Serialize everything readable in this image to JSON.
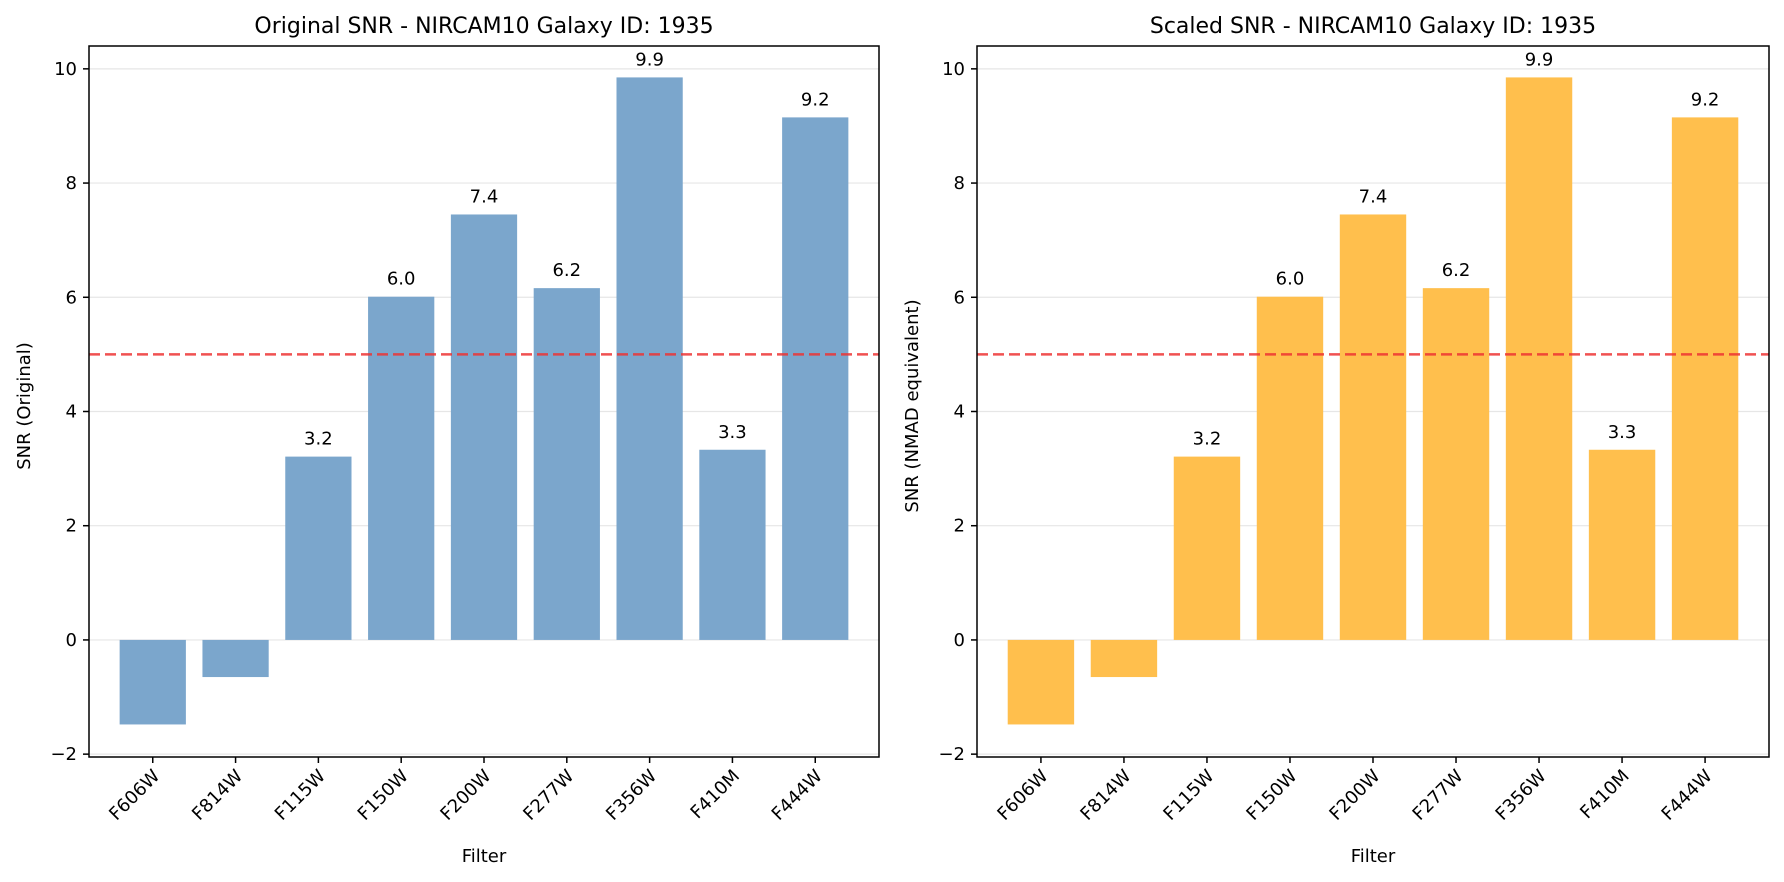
{
  "chart_data": [
    {
      "type": "bar",
      "title": "Original SNR - NIRCAM10 Galaxy ID: 1935",
      "xlabel": "Filter",
      "ylabel": "SNR (Original)",
      "categories": [
        "F606W",
        "F814W",
        "F115W",
        "F150W",
        "F200W",
        "F277W",
        "F356W",
        "F410M",
        "F444W"
      ],
      "values": [
        -1.48,
        -0.65,
        3.21,
        6.01,
        7.45,
        6.16,
        9.85,
        3.33,
        9.15
      ],
      "data_labels": [
        "",
        "",
        "3.2",
        "6.0",
        "7.4",
        "6.2",
        "9.9",
        "3.3",
        "9.2"
      ],
      "ylim": [
        -2.05,
        10.4
      ],
      "yticks": [
        -2,
        0,
        2,
        4,
        6,
        8,
        10
      ],
      "ytick_labels": [
        "−2",
        "0",
        "2",
        "4",
        "6",
        "8",
        "10"
      ],
      "threshold": 5,
      "bar_color": "#7ba6cc",
      "threshold_color": "#ee3333",
      "grid": "horizontal",
      "legend": "none"
    },
    {
      "type": "bar",
      "title": "Scaled SNR - NIRCAM10 Galaxy ID: 1935",
      "xlabel": "Filter",
      "ylabel": "SNR (NMAD equivalent)",
      "categories": [
        "F606W",
        "F814W",
        "F115W",
        "F150W",
        "F200W",
        "F277W",
        "F356W",
        "F410M",
        "F444W"
      ],
      "values": [
        -1.48,
        -0.65,
        3.21,
        6.01,
        7.45,
        6.16,
        9.85,
        3.33,
        9.15
      ],
      "data_labels": [
        "",
        "",
        "3.2",
        "6.0",
        "7.4",
        "6.2",
        "9.9",
        "3.3",
        "9.2"
      ],
      "ylim": [
        -2.05,
        10.4
      ],
      "yticks": [
        -2,
        0,
        2,
        4,
        6,
        8,
        10
      ],
      "ytick_labels": [
        "−2",
        "0",
        "2",
        "4",
        "6",
        "8",
        "10"
      ],
      "threshold": 5,
      "bar_color": "#ffbf4d",
      "threshold_color": "#ee3333",
      "grid": "horizontal",
      "legend": "none"
    }
  ]
}
